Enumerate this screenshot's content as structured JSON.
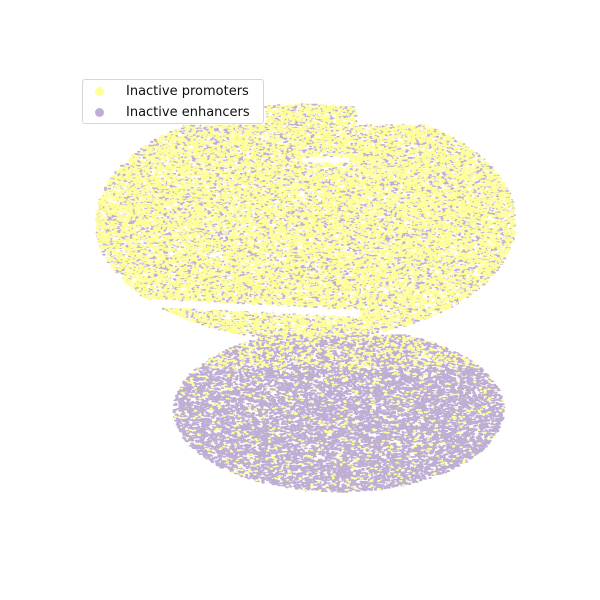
{
  "chart_data": {
    "type": "scatter",
    "title": "",
    "xlabel": "",
    "ylabel": "",
    "axes_visible": false,
    "grid": false,
    "legend_position": "top-left",
    "series": [
      {
        "name": "Inactive promoters",
        "color": "#ffff99",
        "region": "upper-center cluster"
      },
      {
        "name": "Inactive enhancers",
        "color": "#beaed4",
        "region": "whole embedding, dense lower cluster"
      }
    ]
  }
}
